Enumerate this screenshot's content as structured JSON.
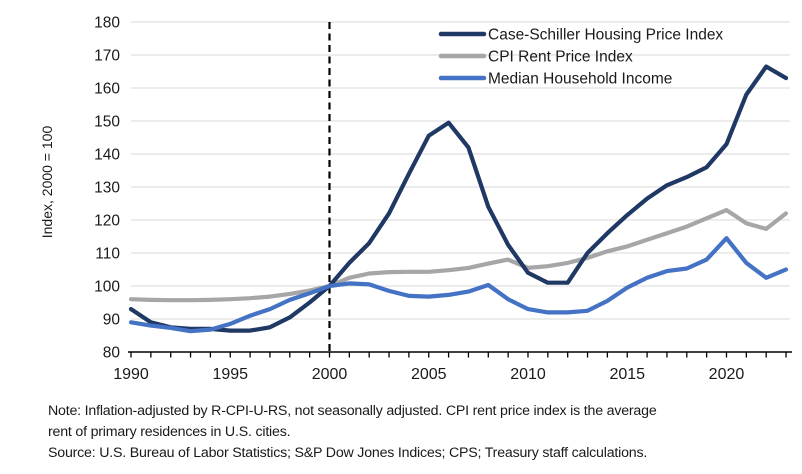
{
  "chart_data": {
    "type": "line",
    "title": "",
    "xlabel": "",
    "ylabel": "Index, 2000 = 100",
    "xlim": [
      1990,
      2023.2
    ],
    "ylim": [
      80,
      180
    ],
    "xticks": [
      1990,
      1995,
      2000,
      2005,
      2010,
      2015,
      2020
    ],
    "yticks": [
      80,
      90,
      100,
      110,
      120,
      130,
      140,
      150,
      160,
      170,
      180
    ],
    "minor_xticks_every_year": true,
    "grid": "horizontal",
    "legend_position": "top-right-inside",
    "annotations": [
      {
        "type": "vertical-dashed-line",
        "x": 2000,
        "color": "#000000"
      }
    ],
    "x": [
      1990,
      1991,
      1992,
      1993,
      1994,
      1995,
      1996,
      1997,
      1998,
      1999,
      2000,
      2001,
      2002,
      2003,
      2004,
      2005,
      2006,
      2007,
      2008,
      2009,
      2010,
      2011,
      2012,
      2013,
      2014,
      2015,
      2016,
      2017,
      2018,
      2019,
      2020,
      2021,
      2022,
      2023
    ],
    "series": [
      {
        "id": "case-shiller",
        "name": "Case-Schiller Housing Price Index",
        "color": "#1f3864",
        "values": [
          93,
          89,
          87.5,
          87,
          87,
          86.5,
          86.5,
          87.5,
          90.5,
          95,
          100,
          107,
          113,
          122,
          134,
          145.5,
          149.5,
          142,
          124,
          112.5,
          104,
          101,
          101,
          110,
          116,
          121.5,
          126.5,
          130.5,
          133,
          136,
          143,
          158,
          166.5,
          163
        ]
      },
      {
        "id": "cpi-rent",
        "name": "CPI Rent Price Index",
        "color": "#a6a6a6",
        "values": [
          96,
          95.8,
          95.7,
          95.7,
          95.8,
          96,
          96.3,
          96.8,
          97.6,
          98.6,
          100,
          102.5,
          103.8,
          104.2,
          104.3,
          104.3,
          104.8,
          105.5,
          106.8,
          108,
          105.5,
          106,
          107,
          108.5,
          110.5,
          112,
          114,
          116,
          118,
          120.5,
          123,
          119,
          117.3,
          122
        ]
      },
      {
        "id": "median-income",
        "name": "Median Household Income",
        "color": "#4472c4",
        "values": [
          89,
          88,
          87.3,
          86.3,
          86.8,
          88.5,
          91,
          93,
          95.8,
          97.8,
          100,
          100.8,
          100.5,
          98.5,
          97,
          96.8,
          97.3,
          98.3,
          100.3,
          96,
          93,
          92,
          92,
          92.5,
          95.5,
          99.5,
          102.5,
          104.5,
          105.3,
          108,
          114.5,
          107,
          102.5,
          105
        ]
      }
    ]
  },
  "style": {
    "grid_color": "#d9d9d9",
    "axis_color": "#000000",
    "text_color": "#1a1a1a",
    "background": "#ffffff"
  },
  "footnote": {
    "note_lines": [
      "Note: Inflation-adjusted by R-CPI-U-RS, not seasonally adjusted. CPI rent price index is the average",
      "rent of primary residences in U.S. cities."
    ],
    "source": "Source: U.S. Bureau of Labor Statistics; S&P Dow Jones Indices; CPS; Treasury staff calculations."
  }
}
